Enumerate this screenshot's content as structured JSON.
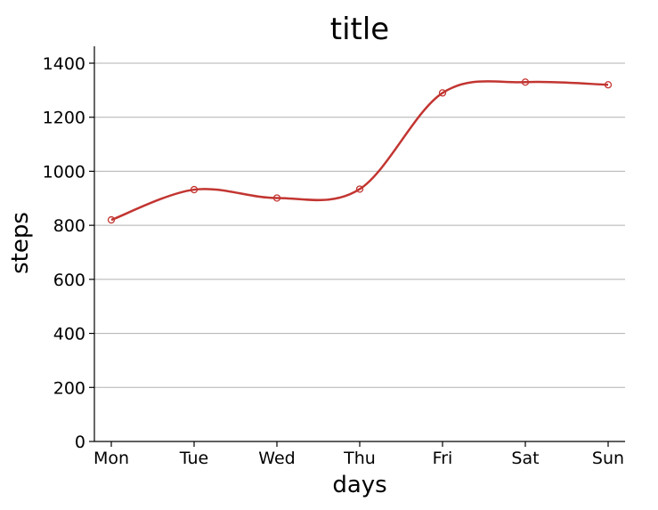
{
  "chart_data": {
    "type": "line",
    "title": "title",
    "xlabel": "days",
    "ylabel": "steps",
    "categories": [
      "Mon",
      "Tue",
      "Wed",
      "Thu",
      "Fri",
      "Sat",
      "Sun"
    ],
    "series": [
      {
        "values": [
          820,
          932,
          901,
          934,
          1290,
          1330,
          1320
        ],
        "color": "#c23531",
        "smooth": true,
        "marker": "empty-circle"
      }
    ],
    "ylim": [
      0,
      1400
    ],
    "yticks": [
      0,
      200,
      400,
      600,
      800,
      1000,
      1200,
      1400
    ],
    "grid": "horizontal",
    "legend": "none"
  }
}
